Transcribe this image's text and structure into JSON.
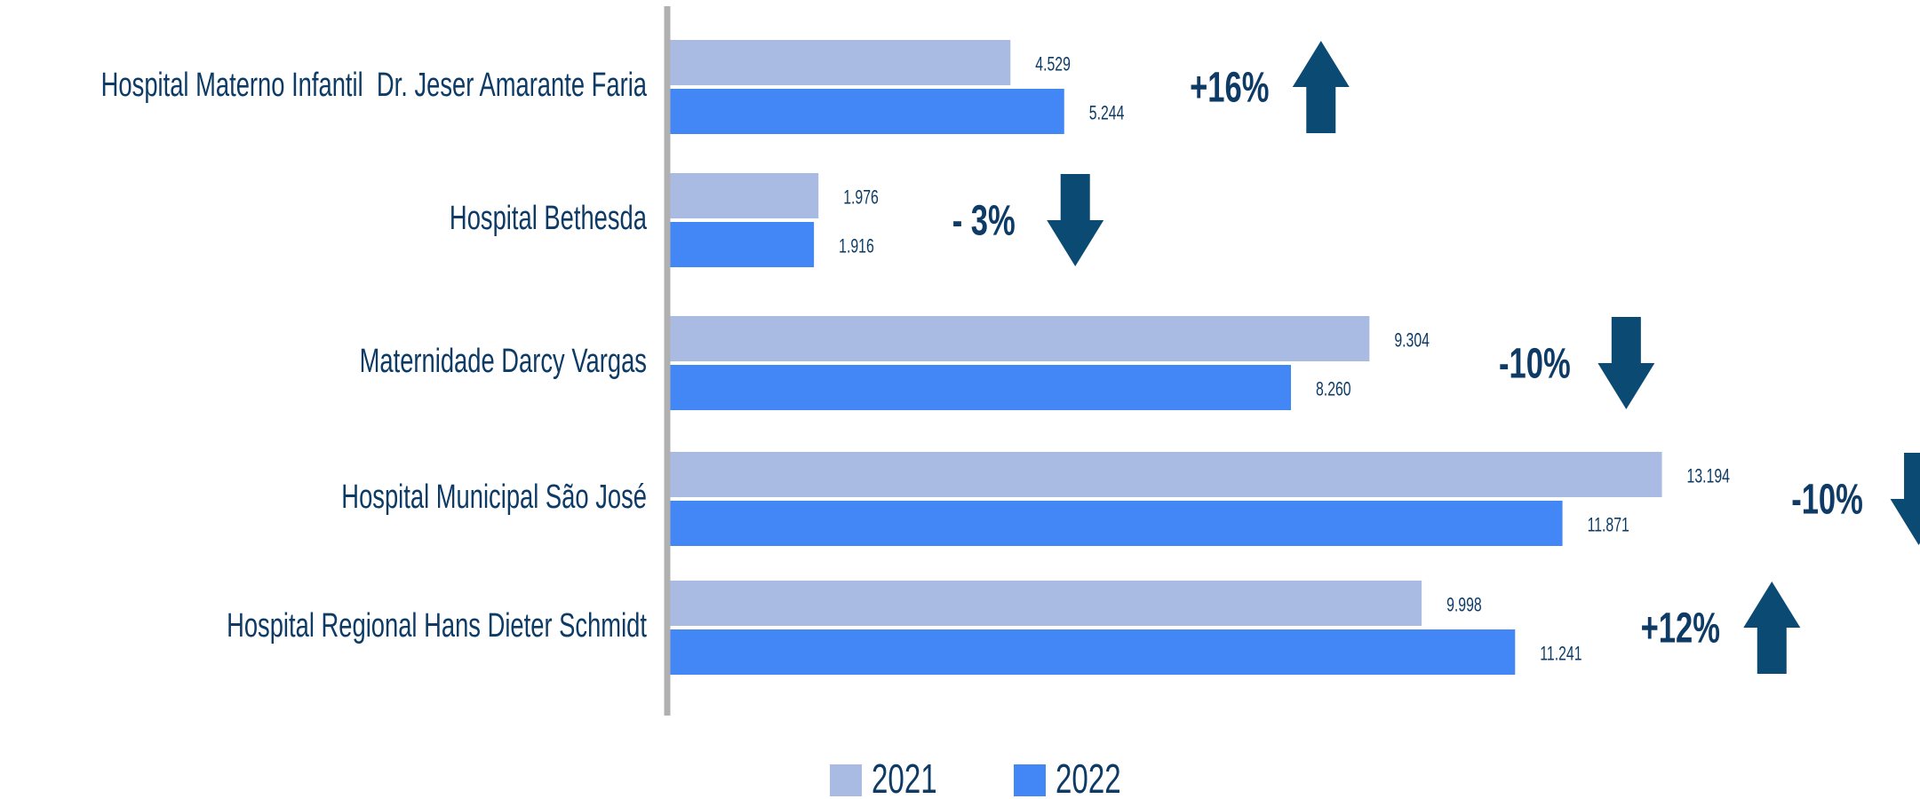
{
  "chart_data": {
    "type": "bar",
    "orientation": "horizontal",
    "categories": [
      "Hospital Materno Infantil  Dr. Jeser Amarante Faria",
      "Hospital Bethesda",
      "Maternidade Darcy Vargas",
      "Hospital Municipal São José",
      "Hospital Regional Hans Dieter Schmidt"
    ],
    "series": [
      {
        "name": "2021",
        "color": "#aabbe3",
        "values": [
          4529,
          1976,
          9304,
          13194,
          9998
        ],
        "value_labels": [
          "4.529",
          "1.976",
          "9.304",
          "13.194",
          "9.998"
        ]
      },
      {
        "name": "2022",
        "color": "#4287f5",
        "values": [
          5244,
          1916,
          8260,
          11871,
          11241
        ],
        "value_labels": [
          "5.244",
          "1.916",
          "8.260",
          "11.871",
          "11.241"
        ]
      }
    ],
    "annotations": [
      {
        "text": "+16%",
        "direction": "up"
      },
      {
        "text": "- 3%",
        "direction": "down"
      },
      {
        "text": "-10%",
        "direction": "down"
      },
      {
        "text": "-10%",
        "direction": "down"
      },
      {
        "text": "+12%",
        "direction": "up"
      }
    ],
    "xlim": [
      0,
      16000
    ],
    "legend": "bottom"
  }
}
